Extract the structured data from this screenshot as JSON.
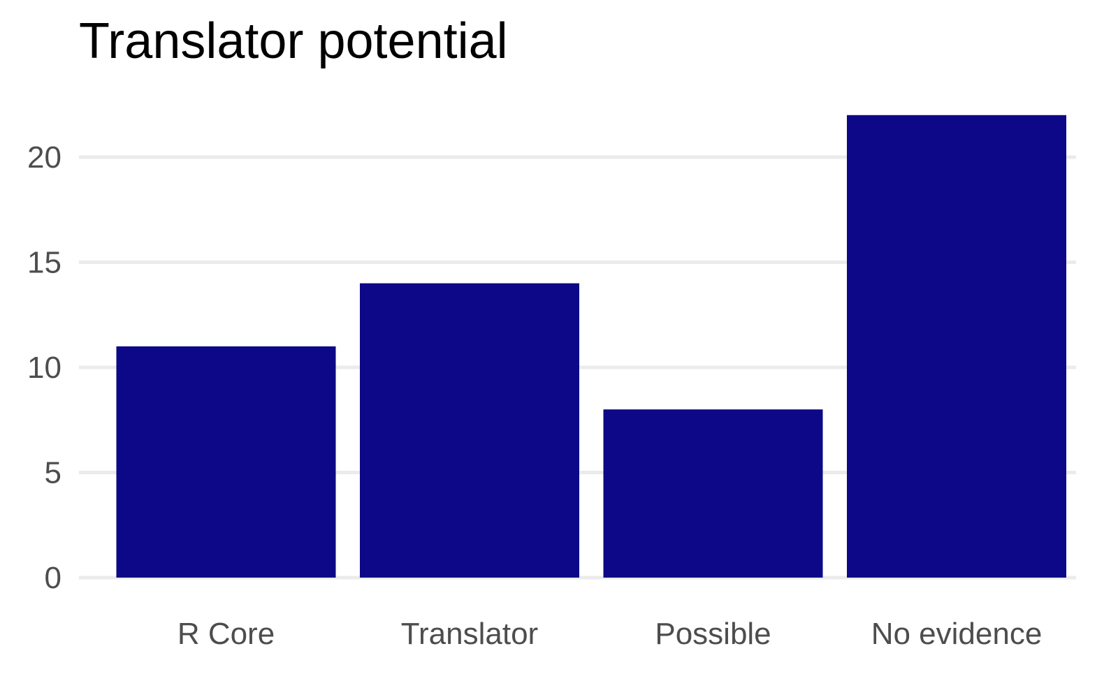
{
  "chart_data": {
    "type": "bar",
    "title": "Translator potential",
    "xlabel": "",
    "ylabel": "",
    "categories": [
      "R Core",
      "Translator",
      "Possible",
      "No evidence"
    ],
    "values": [
      11,
      14,
      8,
      22
    ],
    "ylim": [
      0,
      22
    ],
    "yticks": [
      0,
      5,
      10,
      15,
      20
    ],
    "grid": true,
    "legend": "none",
    "bar_color": "#0d0887"
  }
}
